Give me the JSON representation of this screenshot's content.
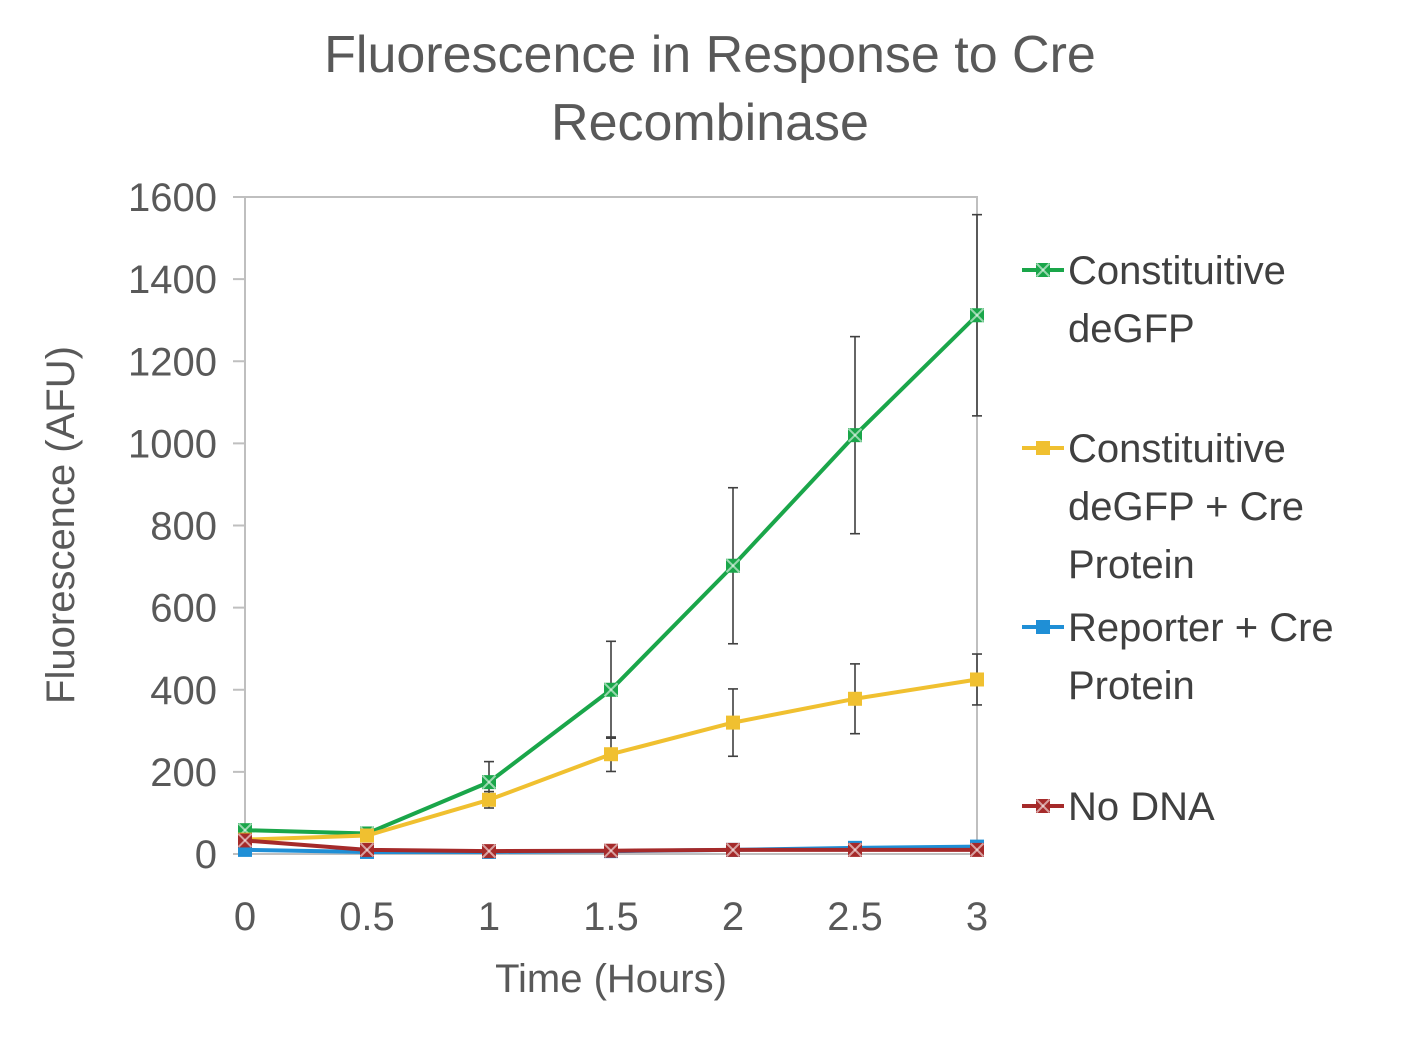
{
  "chart_data": {
    "type": "line",
    "title_lines": [
      "Fluorescence in Response to Cre",
      "Recombinase"
    ],
    "xlabel": "Time (Hours)",
    "ylabel": "Fluorescence (AFU)",
    "xlim": [
      0,
      3
    ],
    "ylim": [
      0,
      1600
    ],
    "x": [
      0,
      0.5,
      1,
      1.5,
      2,
      2.5,
      3
    ],
    "xticks": [
      "0",
      "0.5",
      "1",
      "1.5",
      "2",
      "2.5",
      "3"
    ],
    "yticks": [
      "0",
      "200",
      "400",
      "600",
      "800",
      "1000",
      "1200",
      "1400",
      "1600"
    ],
    "grid": false,
    "legend_position": "right",
    "series": [
      {
        "name": "Constituitive deGFP",
        "legend_lines": [
          "Constituitive",
          "deGFP"
        ],
        "color": "#1aa64a",
        "marker": "x-square",
        "values": [
          58,
          50,
          175,
          400,
          702,
          1020,
          1312
        ],
        "error": [
          8,
          8,
          50,
          118,
          190,
          240,
          245
        ]
      },
      {
        "name": "Constituitive deGFP + Cre Protein",
        "legend_lines": [
          "Constituitive",
          "deGFP + Cre",
          "Protein"
        ],
        "color": "#f0c030",
        "marker": "square",
        "values": [
          35,
          45,
          132,
          243,
          320,
          378,
          425
        ],
        "error": [
          6,
          6,
          20,
          42,
          82,
          85,
          62
        ]
      },
      {
        "name": "Reporter + Cre Protein",
        "legend_lines": [
          "Reporter + Cre",
          "Protein"
        ],
        "color": "#1f8fd6",
        "marker": "square",
        "values": [
          10,
          5,
          5,
          7,
          10,
          15,
          18
        ],
        "error": [
          3,
          3,
          3,
          3,
          3,
          3,
          3
        ]
      },
      {
        "name": "No DNA",
        "legend_lines": [
          "No DNA"
        ],
        "color": "#a52a2a",
        "marker": "x-square",
        "values": [
          33,
          10,
          7,
          8,
          10,
          10,
          10
        ],
        "error": [
          3,
          3,
          3,
          3,
          3,
          3,
          3
        ]
      }
    ]
  }
}
